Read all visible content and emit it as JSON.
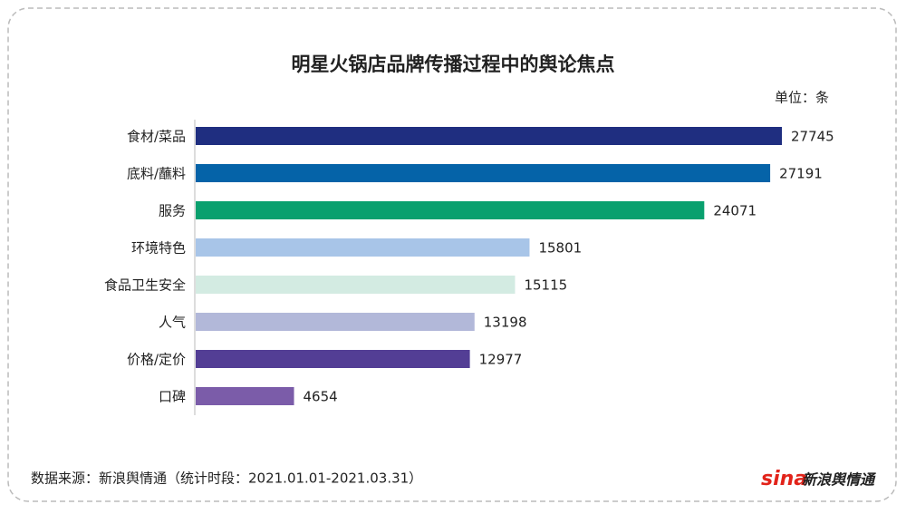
{
  "chart_data": {
    "type": "hbar",
    "title": "明星火锅店品牌传播过程中的舆论焦点",
    "unit": "单位：条",
    "categories": [
      "食材/菜品",
      "底料/蘸料",
      "服务",
      "环境特色",
      "食品卫生安全",
      "人气",
      "价格/定价",
      "口碑"
    ],
    "values": [
      27745,
      27191,
      24071,
      15801,
      15115,
      13198,
      12977,
      4654
    ],
    "colors": [
      "#1f2e80",
      "#0563a8",
      "#09a06e",
      "#a8c5e8",
      "#d3ebe2",
      "#b2b8d9",
      "#533e95",
      "#7b5ca9"
    ]
  },
  "footer": {
    "source": "数据来源：新浪舆情通（统计时段：2021.01.01-2021.03.31）",
    "logo_mark": "sina",
    "logo_text": "新浪舆情通"
  }
}
